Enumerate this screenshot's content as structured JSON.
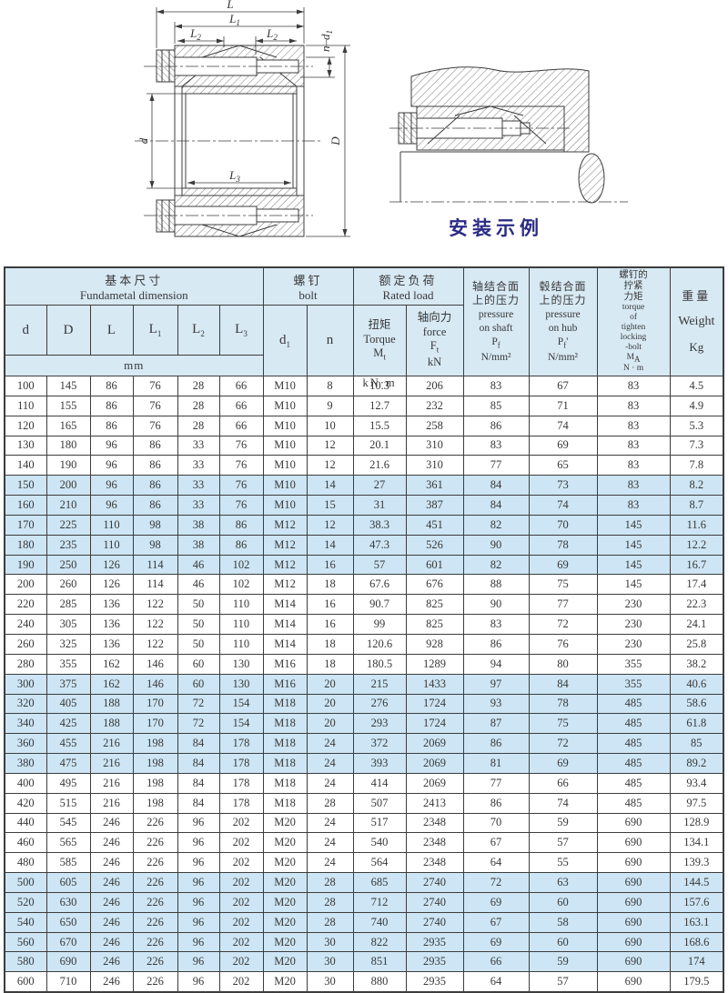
{
  "page": {
    "background": "#ffffff",
    "caption_color": "#2b2b85",
    "table_border_color": "#3d3d3d",
    "header_bg": "#d7e9f3",
    "shaded_row_bg": "#cde5f4"
  },
  "drawing": {
    "caption": "安装示例",
    "labels": {
      "L": "L",
      "L1": {
        "base": "L",
        "sub": "1"
      },
      "L2": {
        "base": "L",
        "sub": "2"
      },
      "L3": {
        "base": "L",
        "sub": "3"
      },
      "nd1": {
        "base": "n–d",
        "sub": "1"
      },
      "d": "d",
      "D": "D"
    }
  },
  "table": {
    "group_headers": {
      "fundamental": {
        "zh": "基本尺寸",
        "en": "Fundametal  dimension"
      },
      "bolt": {
        "zh": "螺钉",
        "en": "bolt"
      },
      "rated": {
        "zh": "额定负荷",
        "en": "Rated load"
      }
    },
    "columns": {
      "d": "d",
      "D": "D",
      "L": "L",
      "L1": {
        "base": "L",
        "sub": "1"
      },
      "L2": {
        "base": "L",
        "sub": "2"
      },
      "L3": {
        "base": "L",
        "sub": "3"
      },
      "unit_mm": "mm",
      "d1": {
        "base": "d",
        "sub": "1"
      },
      "n": "n",
      "torque": {
        "zh": "扭矩",
        "en": "Torque",
        "sym": "M",
        "sub": "t",
        "unit": "kN·m"
      },
      "force": {
        "zh": "轴向力",
        "en": "force",
        "sym": "F",
        "sub": "t",
        "unit": "kN"
      },
      "pressure_shaft": {
        "zh1": "轴结合面",
        "zh2": "上的压力",
        "en1": "pressure",
        "en2": "on shaft",
        "sym": "P",
        "sub": "f",
        "suffix": "",
        "unit": "N/mm²"
      },
      "pressure_hub": {
        "zh1": "毂结合面",
        "zh2": "上的压力",
        "en1": "pressure",
        "en2": "on hub",
        "sym": "P",
        "sub": "f",
        "suffix": "'",
        "unit": "N/mm²"
      },
      "locking_torque": {
        "zh1": "螺钉的",
        "zh2": "拧紧",
        "zh3": "力矩",
        "en1": "torque",
        "en2": "of",
        "en3": "tighten",
        "en4": "locking",
        "en5": "-bolt",
        "sym": "M",
        "sub": "A",
        "unit": "N · m"
      },
      "weight": {
        "zh": "重量",
        "en": "Weight",
        "unit": "Kg"
      }
    },
    "rows": [
      [
        "100",
        "145",
        "86",
        "76",
        "28",
        "66",
        "M10",
        "8",
        "10.3",
        "206",
        "83",
        "67",
        "83",
        "4.5"
      ],
      [
        "110",
        "155",
        "86",
        "76",
        "28",
        "66",
        "M10",
        "9",
        "12.7",
        "232",
        "85",
        "71",
        "83",
        "4.9"
      ],
      [
        "120",
        "165",
        "86",
        "76",
        "28",
        "66",
        "M10",
        "10",
        "15.5",
        "258",
        "86",
        "74",
        "83",
        "5.3"
      ],
      [
        "130",
        "180",
        "96",
        "86",
        "33",
        "76",
        "M10",
        "12",
        "20.1",
        "310",
        "83",
        "69",
        "83",
        "7.3"
      ],
      [
        "140",
        "190",
        "96",
        "86",
        "33",
        "76",
        "M10",
        "12",
        "21.6",
        "310",
        "77",
        "65",
        "83",
        "7.8"
      ],
      [
        "150",
        "200",
        "96",
        "86",
        "33",
        "76",
        "M10",
        "14",
        "27",
        "361",
        "84",
        "73",
        "83",
        "8.2"
      ],
      [
        "160",
        "210",
        "96",
        "86",
        "33",
        "76",
        "M10",
        "15",
        "31",
        "387",
        "84",
        "74",
        "83",
        "8.7"
      ],
      [
        "170",
        "225",
        "110",
        "98",
        "38",
        "86",
        "M12",
        "12",
        "38.3",
        "451",
        "82",
        "70",
        "145",
        "11.6"
      ],
      [
        "180",
        "235",
        "110",
        "98",
        "38",
        "86",
        "M12",
        "14",
        "47.3",
        "526",
        "90",
        "78",
        "145",
        "12.2"
      ],
      [
        "190",
        "250",
        "126",
        "114",
        "46",
        "102",
        "M12",
        "16",
        "57",
        "601",
        "82",
        "69",
        "145",
        "16.7"
      ],
      [
        "200",
        "260",
        "126",
        "114",
        "46",
        "102",
        "M12",
        "18",
        "67.6",
        "676",
        "88",
        "75",
        "145",
        "17.4"
      ],
      [
        "220",
        "285",
        "136",
        "122",
        "50",
        "110",
        "M14",
        "16",
        "90.7",
        "825",
        "90",
        "77",
        "230",
        "22.3"
      ],
      [
        "240",
        "305",
        "136",
        "122",
        "50",
        "110",
        "M14",
        "16",
        "99",
        "825",
        "83",
        "72",
        "230",
        "24.1"
      ],
      [
        "260",
        "325",
        "136",
        "122",
        "50",
        "110",
        "M14",
        "18",
        "120.6",
        "928",
        "86",
        "76",
        "230",
        "25.8"
      ],
      [
        "280",
        "355",
        "162",
        "146",
        "60",
        "130",
        "M16",
        "18",
        "180.5",
        "1289",
        "94",
        "80",
        "355",
        "38.2"
      ],
      [
        "300",
        "375",
        "162",
        "146",
        "60",
        "130",
        "M16",
        "20",
        "215",
        "1433",
        "97",
        "84",
        "355",
        "40.6"
      ],
      [
        "320",
        "405",
        "188",
        "170",
        "72",
        "154",
        "M18",
        "20",
        "276",
        "1724",
        "93",
        "78",
        "485",
        "58.6"
      ],
      [
        "340",
        "425",
        "188",
        "170",
        "72",
        "154",
        "M18",
        "20",
        "293",
        "1724",
        "87",
        "75",
        "485",
        "61.8"
      ],
      [
        "360",
        "455",
        "216",
        "198",
        "84",
        "178",
        "M18",
        "24",
        "372",
        "2069",
        "86",
        "72",
        "485",
        "85"
      ],
      [
        "380",
        "475",
        "216",
        "198",
        "84",
        "178",
        "M18",
        "24",
        "393",
        "2069",
        "81",
        "69",
        "485",
        "89.2"
      ],
      [
        "400",
        "495",
        "216",
        "198",
        "84",
        "178",
        "M18",
        "24",
        "414",
        "2069",
        "77",
        "66",
        "485",
        "93.4"
      ],
      [
        "420",
        "515",
        "216",
        "198",
        "84",
        "178",
        "M18",
        "28",
        "507",
        "2413",
        "86",
        "74",
        "485",
        "97.5"
      ],
      [
        "440",
        "545",
        "246",
        "226",
        "96",
        "202",
        "M20",
        "24",
        "517",
        "2348",
        "70",
        "59",
        "690",
        "128.9"
      ],
      [
        "460",
        "565",
        "246",
        "226",
        "96",
        "202",
        "M20",
        "24",
        "540",
        "2348",
        "67",
        "57",
        "690",
        "134.1"
      ],
      [
        "480",
        "585",
        "246",
        "226",
        "96",
        "202",
        "M20",
        "24",
        "564",
        "2348",
        "64",
        "55",
        "690",
        "139.3"
      ],
      [
        "500",
        "605",
        "246",
        "226",
        "96",
        "202",
        "M20",
        "28",
        "685",
        "2740",
        "72",
        "63",
        "690",
        "144.5"
      ],
      [
        "520",
        "630",
        "246",
        "226",
        "96",
        "202",
        "M20",
        "28",
        "712",
        "2740",
        "69",
        "60",
        "690",
        "157.6"
      ],
      [
        "540",
        "650",
        "246",
        "226",
        "96",
        "202",
        "M20",
        "28",
        "740",
        "2740",
        "67",
        "58",
        "690",
        "163.1"
      ],
      [
        "560",
        "670",
        "246",
        "226",
        "96",
        "202",
        "M20",
        "30",
        "822",
        "2935",
        "69",
        "60",
        "690",
        "168.6"
      ],
      [
        "580",
        "690",
        "246",
        "226",
        "96",
        "202",
        "M20",
        "30",
        "851",
        "2935",
        "66",
        "59",
        "690",
        "174"
      ],
      [
        "600",
        "710",
        "246",
        "226",
        "96",
        "202",
        "M20",
        "30",
        "880",
        "2935",
        "64",
        "57",
        "690",
        "179.5"
      ]
    ],
    "shaded_rows": [
      5,
      6,
      7,
      8,
      9,
      15,
      16,
      17,
      18,
      19,
      25,
      26,
      27,
      28,
      29
    ]
  }
}
